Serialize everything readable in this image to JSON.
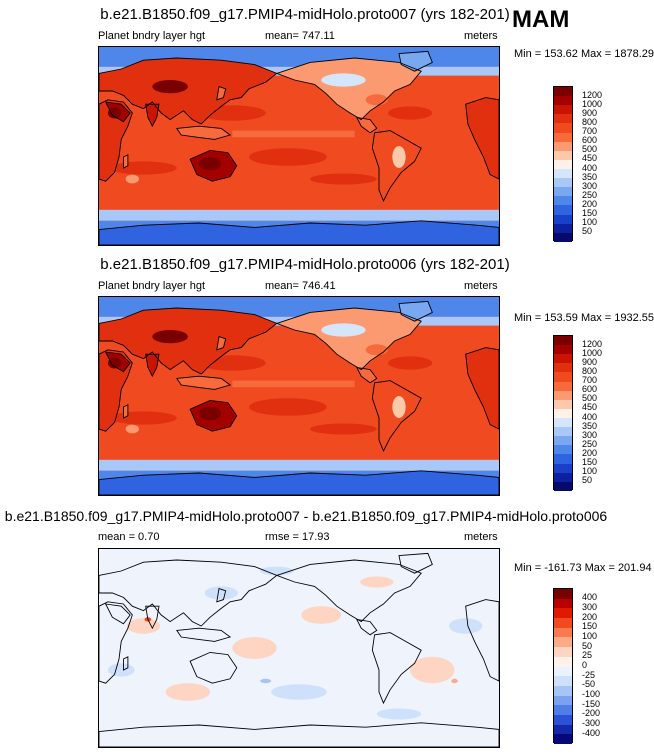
{
  "season": "MAM",
  "panels": [
    {
      "title": "b.e21.B1850.f09_g17.PMIP4-midHolo.proto007 (yrs 182-201)",
      "left_label": "Planet bndry layer hgt",
      "center_label": "mean= 747.11",
      "right_label": "meters",
      "minmax": "Min = 153.62 Max = 1878.29",
      "palette": "abs"
    },
    {
      "title": "b.e21.B1850.f09_g17.PMIP4-midHolo.proto006 (yrs 182-201)",
      "left_label": "Planet bndry layer hgt",
      "center_label": "mean= 746.41",
      "right_label": "meters",
      "minmax": "Min = 153.59 Max = 1932.55",
      "palette": "abs"
    },
    {
      "title": "b.e21.B1850.f09_g17.PMIP4-midHolo.proto007 - b.e21.B1850.f09_g17.PMIP4-midHolo.proto006",
      "left_label": "mean =   0.70",
      "center_label": "rmse =  17.93",
      "right_label": "meters",
      "minmax": "Min = -161.73 Max = 201.94",
      "palette": "diff"
    }
  ],
  "chart_data": [
    {
      "type": "heatmap",
      "title": "b.e21.B1850.f09_g17.PMIP4-midHolo.proto007 (yrs 182-201)",
      "variable": "Planet bndry layer hgt",
      "units": "meters",
      "mean": 747.11,
      "min": 153.62,
      "max": 1878.29,
      "colorbar_levels": [
        "1200",
        "1000",
        "900",
        "800",
        "700",
        "600",
        "500",
        "450",
        "400",
        "350",
        "300",
        "250",
        "200",
        "150",
        "100",
        "50"
      ],
      "colors": [
        "#7a0000",
        "#a30000",
        "#c81400",
        "#e03010",
        "#f04a20",
        "#f76a3c",
        "#fb9a70",
        "#fcc9aa",
        "#fff0e8",
        "#d5e6fb",
        "#a9c8f7",
        "#7aa8f0",
        "#4f86ea",
        "#2f63e0",
        "#1a3fc8",
        "#0d20a0",
        "#060a6a"
      ]
    },
    {
      "type": "heatmap",
      "title": "b.e21.B1850.f09_g17.PMIP4-midHolo.proto006 (yrs 182-201)",
      "variable": "Planet bndry layer hgt",
      "units": "meters",
      "mean": 746.41,
      "min": 153.59,
      "max": 1932.55,
      "colorbar_levels": [
        "1200",
        "1000",
        "900",
        "800",
        "700",
        "600",
        "500",
        "450",
        "400",
        "350",
        "300",
        "250",
        "200",
        "150",
        "100",
        "50"
      ],
      "colors": [
        "#7a0000",
        "#a30000",
        "#c81400",
        "#e03010",
        "#f04a20",
        "#f76a3c",
        "#fb9a70",
        "#fcc9aa",
        "#fff0e8",
        "#d5e6fb",
        "#a9c8f7",
        "#7aa8f0",
        "#4f86ea",
        "#2f63e0",
        "#1a3fc8",
        "#0d20a0",
        "#060a6a"
      ]
    },
    {
      "type": "heatmap",
      "title": "b.e21.B1850.f09_g17.PMIP4-midHolo.proto007 - b.e21.B1850.f09_g17.PMIP4-midHolo.proto006",
      "units": "meters",
      "mean": 0.7,
      "rmse": 17.93,
      "min": -161.73,
      "max": 201.94,
      "colorbar_levels": [
        "400",
        "300",
        "200",
        "150",
        "100",
        "50",
        "25",
        "0",
        "-25",
        "-50",
        "-100",
        "-150",
        "-200",
        "-300",
        "-400"
      ],
      "colors": [
        "#7a0000",
        "#b80000",
        "#e01a00",
        "#f04a20",
        "#f77a50",
        "#fbab88",
        "#fdd5c2",
        "#fff2ec",
        "#eaf2fd",
        "#cfe0fb",
        "#a7c4f6",
        "#7aa2ee",
        "#4f7ee6",
        "#2a52d2",
        "#1428a8",
        "#06087a"
      ]
    }
  ]
}
